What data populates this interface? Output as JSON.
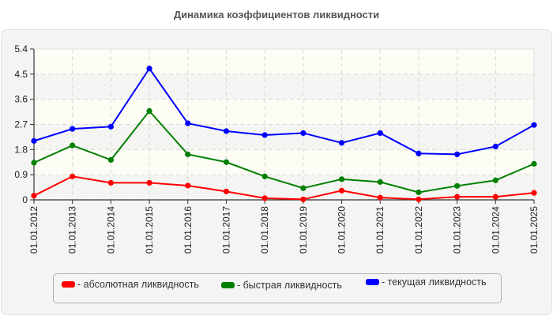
{
  "title": "Динамика коэффициентов ликвидности",
  "chart_data": {
    "type": "line",
    "title": "Динамика коэффициентов ликвидности",
    "xlabel": "",
    "ylabel": "",
    "ylim": [
      0,
      5.4
    ],
    "yticks": [
      "0",
      "0.9",
      "1.8",
      "2.7",
      "3.6",
      "4.5",
      "5.4"
    ],
    "grid": true,
    "legend_position": "bottom",
    "categories": [
      "01.01.2012",
      "01.01.2013",
      "01.01.2014",
      "01.01.2015",
      "01.01.2016",
      "01.01.2017",
      "01.01.2018",
      "01.01.2019",
      "01.01.2020",
      "01.01.2021",
      "01.01.2022",
      "01.01.2023",
      "01.01.2024",
      "01.01.2025"
    ],
    "series": [
      {
        "name": "- абсолютная ликвидность",
        "color": "#ff0000",
        "values": [
          0.15,
          0.84,
          0.61,
          0.61,
          0.51,
          0.3,
          0.06,
          0.02,
          0.33,
          0.08,
          0.02,
          0.11,
          0.11,
          0.25
        ]
      },
      {
        "name": "- быстрая ликвидность",
        "color": "#008000",
        "values": [
          1.33,
          1.95,
          1.43,
          3.18,
          1.63,
          1.35,
          0.84,
          0.42,
          0.74,
          0.64,
          0.27,
          0.5,
          0.7,
          1.29
        ]
      },
      {
        "name": "- текущая ликвидность",
        "color": "#0000ff",
        "values": [
          2.11,
          2.54,
          2.62,
          4.7,
          2.74,
          2.46,
          2.32,
          2.39,
          2.04,
          2.39,
          1.66,
          1.63,
          1.91,
          2.68
        ]
      }
    ]
  },
  "legend": {
    "items": [
      {
        "label": "- абсолютная ликвидность",
        "color": "#ff0000"
      },
      {
        "label": "- быстрая ликвидность",
        "color": "#008000"
      },
      {
        "label": "- текущая ликвидность",
        "color": "#0000ff"
      }
    ]
  }
}
